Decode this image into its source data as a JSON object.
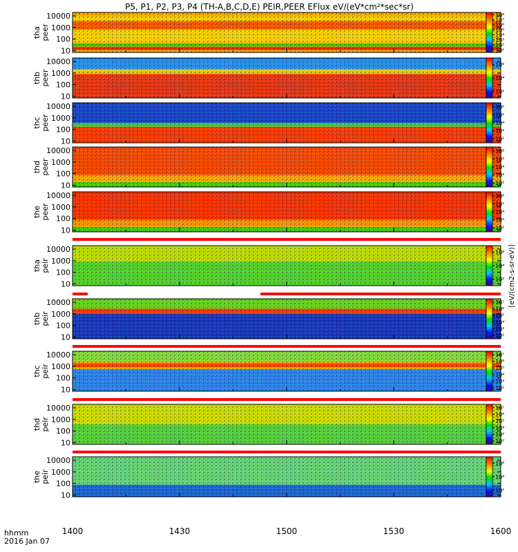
{
  "chart_data": {
    "type": "heatmap",
    "title": "P5, P1, P2, P3, P4 (TH-A,B,C,D,E) PEIR,PEER EFlux eV/(eV*cm²*sec*sr)",
    "x_axis": {
      "range": [
        1400,
        1600
      ],
      "ticks": [
        "1400",
        "1430",
        "1500",
        "1530",
        "1600"
      ],
      "label_line1": "hhmm",
      "label_line2": "2016 Jan 07"
    },
    "colorbar_unit_label": "[eV/(cm2-s-sr-eV)]",
    "panels": [
      {
        "id": "tha-peer",
        "probe": "tha",
        "species": "peer",
        "yticks": [
          "10",
          "100",
          "1000",
          "10000"
        ],
        "ylim": [
          7,
          20000
        ],
        "scale": "log",
        "cb_ticks": [
          "10¹",
          "10²",
          "10³",
          "10⁴",
          "10⁵",
          "10⁶",
          "10⁷",
          "10⁸"
        ],
        "cb_range": [
          1,
          8
        ],
        "bands": [
          [
            0.9,
            0.25,
            "#ffd200"
          ],
          [
            0.78,
            0.62,
            "#ff2800"
          ],
          [
            0.78,
            0.57,
            "#ff5a00"
          ],
          [
            0.22,
            0.15,
            "#2ad400"
          ],
          [
            0.14,
            0.06,
            "#ff2000"
          ]
        ]
      },
      {
        "id": "thb-peer",
        "probe": "thb",
        "species": "peer",
        "yticks": [
          "10",
          "100",
          "1000",
          "10000"
        ],
        "ylim": [
          7,
          20000
        ],
        "scale": "log",
        "cb_ticks": [
          "10²",
          "10⁴",
          "10⁶"
        ],
        "cb_range": [
          1,
          7
        ],
        "bands": [
          [
            1.0,
            0.0,
            "#1a8cff"
          ],
          [
            0.72,
            0.58,
            "#ffd000"
          ],
          [
            0.6,
            0.0,
            "#ff3000"
          ]
        ]
      },
      {
        "id": "thc-peer",
        "probe": "thc",
        "species": "peer",
        "yticks": [
          "10",
          "100",
          "1000",
          "10000"
        ],
        "ylim": [
          7,
          20000
        ],
        "scale": "log",
        "cb_ticks": [
          "10²",
          "10³",
          "10⁴",
          "10⁵",
          "10⁶"
        ],
        "cb_range": [
          1,
          7
        ],
        "bands": [
          [
            1.0,
            0.5,
            "#0a3cdc"
          ],
          [
            0.5,
            0.4,
            "#30d050"
          ],
          [
            0.4,
            0.0,
            "#ff3000"
          ]
        ]
      },
      {
        "id": "thd-peer",
        "probe": "thd",
        "species": "peer",
        "yticks": [
          "10",
          "100",
          "1000",
          "10000"
        ],
        "ylim": [
          7,
          20000
        ],
        "scale": "log",
        "cb_ticks": [
          "10²",
          "10³",
          "10⁴",
          "10⁵",
          "10⁶"
        ],
        "cb_range": [
          1,
          7
        ],
        "bands": [
          [
            1.0,
            0.15,
            "#ff4000"
          ],
          [
            0.3,
            0.1,
            "#ffb000"
          ],
          [
            0.12,
            0.0,
            "#3ad400"
          ]
        ]
      },
      {
        "id": "the-peer",
        "probe": "the",
        "species": "peer",
        "yticks": [
          "10",
          "100",
          "1000",
          "10000"
        ],
        "ylim": [
          7,
          20000
        ],
        "scale": "log",
        "cb_ticks": [
          "10²",
          "10³",
          "10⁴",
          "10⁵",
          "10⁶"
        ],
        "cb_range": [
          1,
          7
        ],
        "bands": [
          [
            1.0,
            0.2,
            "#ff2800"
          ],
          [
            0.3,
            0.1,
            "#ff9a00"
          ],
          [
            0.12,
            0.0,
            "#30d000"
          ]
        ]
      },
      {
        "id": "tha-peir",
        "probe": "tha",
        "species": "peir",
        "yticks": [
          "10",
          "100",
          "1000",
          "10000"
        ],
        "ylim": [
          7,
          20000
        ],
        "scale": "log",
        "cb_ticks": [
          "10²",
          "10⁴",
          "10⁶"
        ],
        "cb_range": [
          1,
          7
        ],
        "bands": [
          [
            1.0,
            0.0,
            "#c0e000"
          ],
          [
            0.6,
            0.0,
            "#50d030"
          ]
        ]
      },
      {
        "id": "thb-peir",
        "probe": "thb",
        "species": "peir",
        "yticks": [
          "10",
          "100",
          "1000",
          "10000"
        ],
        "ylim": [
          7,
          20000
        ],
        "scale": "log",
        "cb_ticks": [
          "10²",
          "10³",
          "10⁴",
          "10⁵",
          "10⁶",
          "10⁷"
        ],
        "cb_range": [
          1,
          7
        ],
        "bands": [
          [
            1.0,
            0.75,
            "#60d820"
          ],
          [
            0.75,
            0.62,
            "#ff3000"
          ],
          [
            0.62,
            0.0,
            "#0a2ccc"
          ]
        ]
      },
      {
        "id": "thc-peir",
        "probe": "thc",
        "species": "peir",
        "yticks": [
          "10",
          "100",
          "1000",
          "10000"
        ],
        "ylim": [
          7,
          20000
        ],
        "scale": "log",
        "cb_ticks": [
          "10²",
          "10³",
          "10⁴",
          "10⁵",
          "10⁶",
          "10⁷"
        ],
        "cb_range": [
          1,
          7
        ],
        "bands": [
          [
            1.0,
            0.75,
            "#80e040"
          ],
          [
            0.7,
            0.6,
            "#ff4000"
          ],
          [
            0.55,
            0.0,
            "#2080ff"
          ]
        ]
      },
      {
        "id": "thd-peir",
        "probe": "thd",
        "species": "peir",
        "yticks": [
          "10",
          "100",
          "1000",
          "10000"
        ],
        "ylim": [
          7,
          20000
        ],
        "scale": "log",
        "cb_ticks": [
          "10²",
          "10³",
          "10⁴",
          "10⁵",
          "10⁶",
          "10⁷"
        ],
        "cb_range": [
          1,
          7
        ],
        "bands": [
          [
            1.0,
            0.0,
            "#d0e000"
          ],
          [
            0.5,
            0.0,
            "#50d040"
          ]
        ]
      },
      {
        "id": "the-peir",
        "probe": "the",
        "species": "peir",
        "yticks": [
          "10",
          "100",
          "1000",
          "10000"
        ],
        "ylim": [
          7,
          20000
        ],
        "scale": "log",
        "cb_ticks": [
          "10²",
          "10⁴",
          "10⁶"
        ],
        "cb_range": [
          1,
          7
        ],
        "bands": [
          [
            1.0,
            0.0,
            "#60d880"
          ],
          [
            0.3,
            0.0,
            "#1a5ce0"
          ]
        ]
      }
    ]
  }
}
